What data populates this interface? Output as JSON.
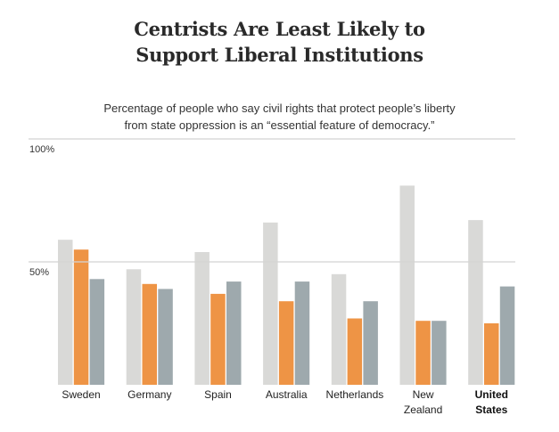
{
  "chart_data": {
    "type": "bar",
    "title": "Centrists Are Least Likely to Support Liberal Institutions",
    "title_lines": [
      "Centrists Are Least Likely to",
      "Support Liberal Institutions"
    ],
    "subtitle_lines": [
      "Percentage of people who say civil rights that protect people’s liberty",
      "from state oppression is an “essential feature of democracy.”"
    ],
    "xlabel": "",
    "ylabel": "",
    "ylim": [
      0,
      100
    ],
    "yticks": [
      {
        "value": 100,
        "label": "100%"
      },
      {
        "value": 50,
        "label": "50%"
      }
    ],
    "grid": true,
    "legend": null,
    "categories": [
      {
        "lines": [
          "Sweden"
        ],
        "bold": false
      },
      {
        "lines": [
          "Germany"
        ],
        "bold": false
      },
      {
        "lines": [
          "Spain"
        ],
        "bold": false
      },
      {
        "lines": [
          "Australia"
        ],
        "bold": false
      },
      {
        "lines": [
          "Netherlands"
        ],
        "bold": false
      },
      {
        "lines": [
          "New",
          "Zealand"
        ],
        "bold": false
      },
      {
        "lines": [
          "United",
          "States"
        ],
        "bold": true
      }
    ],
    "series": [
      {
        "name": "series-1",
        "color": "#d9d9d7",
        "values": [
          59,
          47,
          54,
          66,
          45,
          81,
          67
        ]
      },
      {
        "name": "series-2",
        "color": "#ee9445",
        "values": [
          55,
          41,
          37,
          34,
          27,
          26,
          25
        ]
      },
      {
        "name": "series-3",
        "color": "#9ea9ad",
        "values": [
          43,
          39,
          42,
          42,
          34,
          26,
          40
        ]
      }
    ]
  },
  "colors": {
    "gridline": "#d4d4d4",
    "title": "#2a2a2a"
  }
}
